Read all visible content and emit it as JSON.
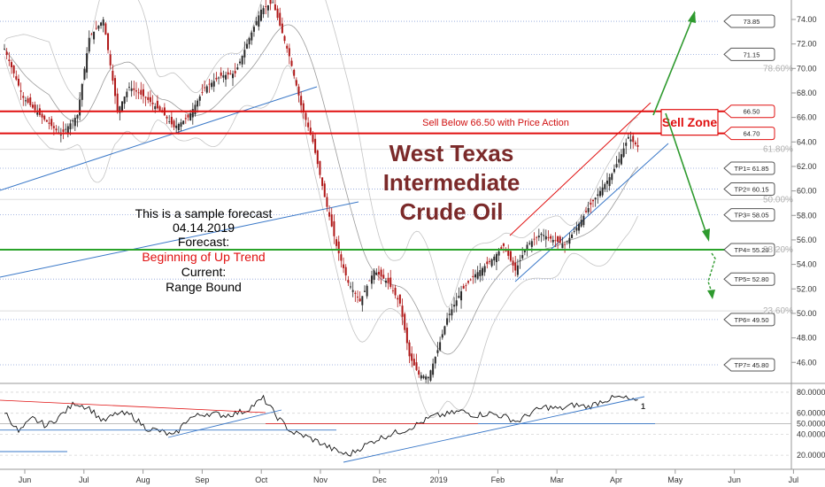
{
  "colors": {
    "bull": "#2a2a2a",
    "bear": "#b01818",
    "resistance": "#e01010",
    "support": "#2aa32a",
    "trend": "#3a78c8",
    "arrow": "#2e9a2e",
    "title": "#7b2a2a",
    "fib": "#b0b0b0"
  },
  "chart_data": {
    "type": "candlestick",
    "title": [
      "West Texas",
      "Intermediate",
      "Crude Oil"
    ],
    "x_tick_labels": [
      "Jun",
      "Jul",
      "Aug",
      "Sep",
      "Oct",
      "Nov",
      "Dec",
      "2019",
      "Feb",
      "Mar",
      "Apr",
      "May",
      "Jun",
      "Jul"
    ],
    "y_tick_labels": [
      "46.00",
      "48.00",
      "50.00",
      "52.00",
      "54.00",
      "56.00",
      "58.00",
      "60.00",
      "62.00",
      "64.00",
      "66.00",
      "68.00",
      "70.00",
      "72.00",
      "74.00"
    ],
    "y_range": [
      44.5,
      75.3
    ],
    "fib_levels": [
      {
        "label": "78.60%",
        "value": 70.0
      },
      {
        "label": "61.80%",
        "value": 63.4
      },
      {
        "label": "50.00%",
        "value": 59.3
      },
      {
        "label": "38.20%",
        "value": 55.2
      },
      {
        "label": "23.60%",
        "value": 50.2
      }
    ],
    "tags": [
      {
        "label": "73.85",
        "value": 73.85,
        "color": "#555555"
      },
      {
        "label": "71.15",
        "value": 71.15,
        "color": "#555555"
      },
      {
        "label": "66.50",
        "value": 66.5,
        "color": "#e01010"
      },
      {
        "label": "64.70",
        "value": 64.7,
        "color": "#e01010"
      },
      {
        "label": "TP1= 61.85",
        "value": 61.85,
        "color": "#555555"
      },
      {
        "label": "TP2= 60.15",
        "value": 60.15,
        "color": "#555555"
      },
      {
        "label": "TP3= 58.05",
        "value": 58.05,
        "color": "#555555"
      },
      {
        "label": "TP4= 55.20",
        "value": 55.2,
        "color": "#555555"
      },
      {
        "label": "TP5= 52.80",
        "value": 52.8,
        "color": "#555555"
      },
      {
        "label": "TP6= 49.50",
        "value": 49.5,
        "color": "#555555"
      },
      {
        "label": "TP7= 45.80",
        "value": 45.8,
        "color": "#555555"
      }
    ],
    "sell_zone": {
      "upper": 66.5,
      "lower": 64.7,
      "label": "Sell Below 66.50 with Price Action",
      "zone_label": "Sell Zone"
    },
    "support_level": 55.2,
    "price_anchors": [
      [
        0,
        71.6
      ],
      [
        8,
        67.6
      ],
      [
        16,
        66.0
      ],
      [
        24,
        64.6
      ],
      [
        31,
        66.2
      ],
      [
        36,
        72.5
      ],
      [
        42,
        74.0
      ],
      [
        48,
        66.5
      ],
      [
        53,
        68.5
      ],
      [
        60,
        67.6
      ],
      [
        67,
        66.4
      ],
      [
        72,
        65.2
      ],
      [
        78,
        66.0
      ],
      [
        85,
        68.4
      ],
      [
        92,
        69.4
      ],
      [
        98,
        69.6
      ],
      [
        103,
        72.0
      ],
      [
        109,
        74.8
      ],
      [
        114,
        75.4
      ],
      [
        117,
        73.5
      ],
      [
        121,
        71.0
      ],
      [
        126,
        67.0
      ],
      [
        131,
        64.0
      ],
      [
        136,
        59.5
      ],
      [
        141,
        55.5
      ],
      [
        146,
        52.5
      ],
      [
        151,
        51.0
      ],
      [
        157,
        53.5
      ],
      [
        163,
        52.5
      ],
      [
        168,
        50.8
      ],
      [
        172,
        46.5
      ],
      [
        176,
        45.0
      ],
      [
        180,
        44.8
      ],
      [
        184,
        47.0
      ],
      [
        188,
        49.6
      ],
      [
        194,
        51.8
      ],
      [
        200,
        53.2
      ],
      [
        206,
        54.2
      ],
      [
        212,
        55.5
      ],
      [
        217,
        53.5
      ],
      [
        222,
        55.6
      ],
      [
        228,
        56.5
      ],
      [
        233,
        56.0
      ],
      [
        238,
        55.6
      ],
      [
        243,
        57.0
      ],
      [
        248,
        58.6
      ],
      [
        253,
        60.0
      ],
      [
        258,
        61.4
      ],
      [
        262,
        63.0
      ],
      [
        265,
        64.4
      ],
      [
        269,
        63.6
      ]
    ],
    "indicator": {
      "y_tick_labels": [
        "20.0000",
        "40.0000",
        "50.0000",
        "60.0000",
        "80.0000"
      ],
      "y_range": [
        10,
        85
      ],
      "current_label": "1",
      "anchors": [
        [
          0,
          62
        ],
        [
          6,
          42
        ],
        [
          12,
          55
        ],
        [
          18,
          48
        ],
        [
          24,
          58
        ],
        [
          30,
          70
        ],
        [
          36,
          65
        ],
        [
          42,
          52
        ],
        [
          48,
          60
        ],
        [
          54,
          58
        ],
        [
          60,
          46
        ],
        [
          66,
          43
        ],
        [
          72,
          38
        ],
        [
          78,
          55
        ],
        [
          86,
          60
        ],
        [
          94,
          58
        ],
        [
          102,
          62
        ],
        [
          110,
          74
        ],
        [
          116,
          56
        ],
        [
          122,
          42
        ],
        [
          128,
          38
        ],
        [
          134,
          32
        ],
        [
          140,
          25
        ],
        [
          146,
          20
        ],
        [
          152,
          28
        ],
        [
          158,
          35
        ],
        [
          164,
          40
        ],
        [
          170,
          44
        ],
        [
          176,
          50
        ],
        [
          182,
          57
        ],
        [
          188,
          59
        ],
        [
          194,
          62
        ],
        [
          200,
          58
        ],
        [
          206,
          60
        ],
        [
          212,
          57
        ],
        [
          218,
          52
        ],
        [
          224,
          61
        ],
        [
          230,
          66
        ],
        [
          236,
          64
        ],
        [
          242,
          68
        ],
        [
          248,
          66
        ],
        [
          254,
          72
        ],
        [
          260,
          75
        ],
        [
          264,
          74
        ],
        [
          269,
          70
        ]
      ]
    }
  },
  "annotations": {
    "note_line1": "This is a sample forecast",
    "note_line2": "04.14.2019",
    "note_line3": "Forecast:",
    "note_line4": "Beginning of Up Trend",
    "note_line5": "Current:",
    "note_line6": "Range Bound"
  }
}
